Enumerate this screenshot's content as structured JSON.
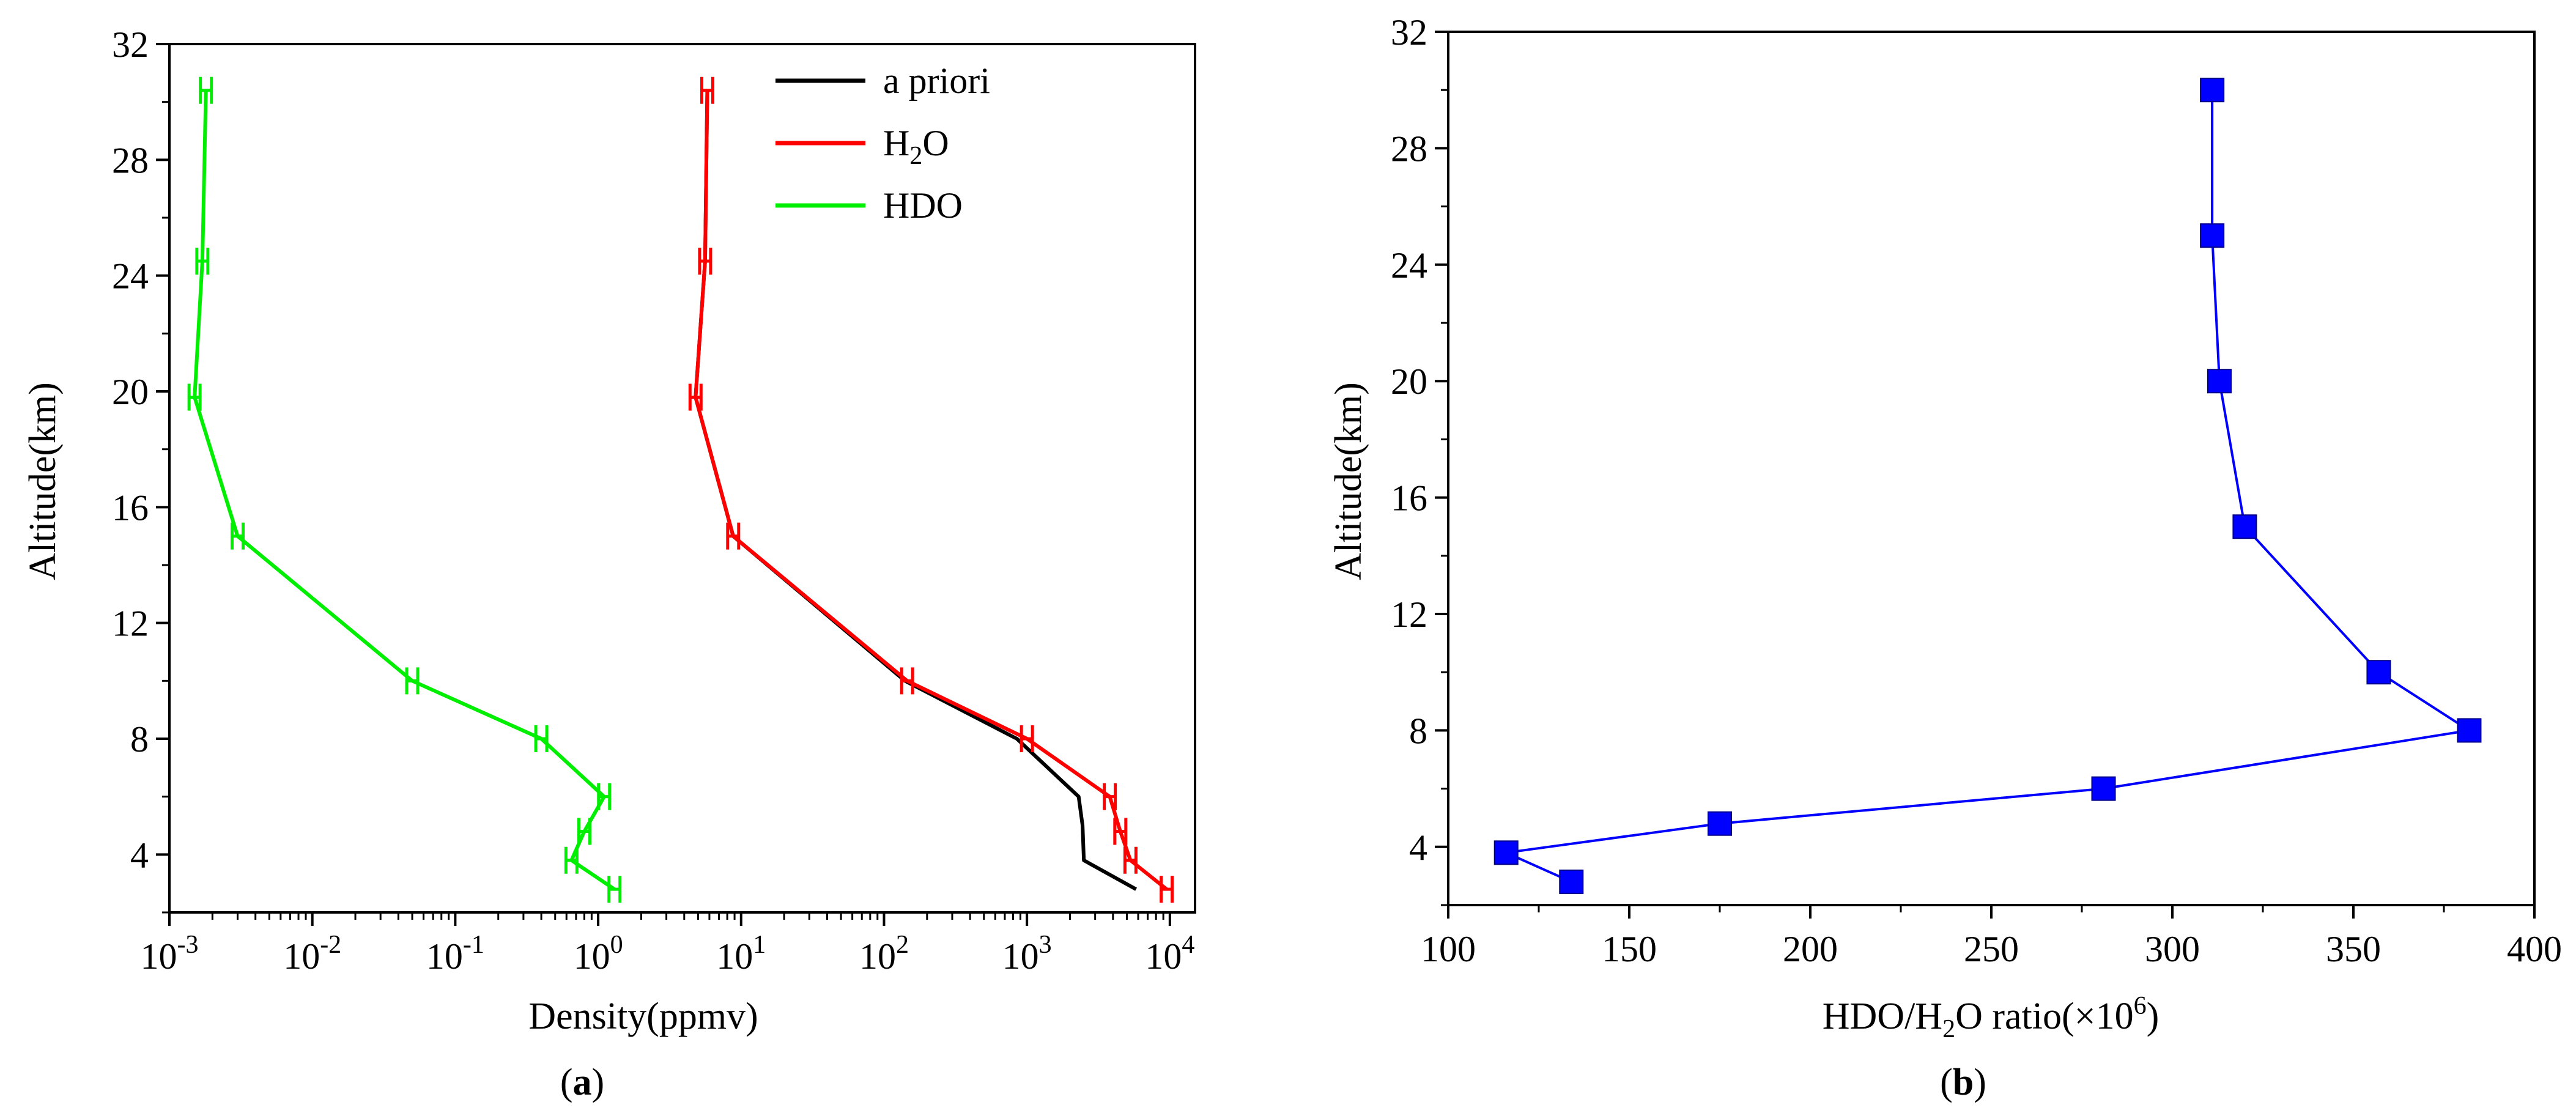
{
  "chart_data": [
    {
      "panel": "a",
      "caption": "a",
      "type": "line",
      "xscale": "log",
      "xlabel": "Density(ppmv)",
      "ylabel": "Altitude(km)",
      "xlim": [
        0.001,
        15000
      ],
      "ylim": [
        2,
        32
      ],
      "x_ticks": [
        {
          "value": 0.001,
          "base": "10",
          "exp": "-3"
        },
        {
          "value": 0.01,
          "base": "10",
          "exp": "-2"
        },
        {
          "value": 0.1,
          "base": "10",
          "exp": "-1"
        },
        {
          "value": 1,
          "base": "10",
          "exp": "0"
        },
        {
          "value": 10,
          "base": "10",
          "exp": "1"
        },
        {
          "value": 100,
          "base": "10",
          "exp": "2"
        },
        {
          "value": 1000,
          "base": "10",
          "exp": "3"
        },
        {
          "value": 10000,
          "base": "10",
          "exp": "4"
        }
      ],
      "y_ticks": [
        "4",
        "8",
        "12",
        "16",
        "20",
        "24",
        "28",
        "32"
      ],
      "legend": {
        "position": "top-right",
        "entries": [
          {
            "name": "a priori",
            "color": "#000000"
          },
          {
            "name": "H2O",
            "label_main": "H",
            "label_sub": "2",
            "label_tail": "O",
            "color": "#ff0000"
          },
          {
            "name": "HDO",
            "color": "#00ee00"
          }
        ]
      },
      "series": [
        {
          "name": "a priori",
          "color": "#000000",
          "errorbars": false,
          "points": [
            {
              "x": 5.8,
              "y": 30.4
            },
            {
              "x": 5.6,
              "y": 24.5
            },
            {
              "x": 4.8,
              "y": 19.8
            },
            {
              "x": 8.8,
              "y": 15
            },
            {
              "x": 140,
              "y": 10
            },
            {
              "x": 850,
              "y": 8
            },
            {
              "x": 2300,
              "y": 6
            },
            {
              "x": 2450,
              "y": 5
            },
            {
              "x": 2500,
              "y": 3.8
            },
            {
              "x": 5800,
              "y": 2.8
            }
          ]
        },
        {
          "name": "H2O",
          "color": "#ff0000",
          "errorbars": true,
          "points": [
            {
              "x": 5.8,
              "y": 30.4
            },
            {
              "x": 5.6,
              "y": 24.5
            },
            {
              "x": 4.8,
              "y": 19.8
            },
            {
              "x": 8.8,
              "y": 15
            },
            {
              "x": 145,
              "y": 10
            },
            {
              "x": 1000,
              "y": 8
            },
            {
              "x": 3800,
              "y": 6
            },
            {
              "x": 4500,
              "y": 4.8
            },
            {
              "x": 5300,
              "y": 3.8
            },
            {
              "x": 9500,
              "y": 2.8
            }
          ]
        },
        {
          "name": "HDO",
          "color": "#00ee00",
          "errorbars": true,
          "points": [
            {
              "x": 0.0018,
              "y": 30.4
            },
            {
              "x": 0.0017,
              "y": 24.5
            },
            {
              "x": 0.0015,
              "y": 19.8
            },
            {
              "x": 0.003,
              "y": 15
            },
            {
              "x": 0.05,
              "y": 10
            },
            {
              "x": 0.4,
              "y": 8
            },
            {
              "x": 1.1,
              "y": 6
            },
            {
              "x": 0.8,
              "y": 4.8
            },
            {
              "x": 0.65,
              "y": 3.8
            },
            {
              "x": 1.3,
              "y": 2.8
            }
          ]
        }
      ]
    },
    {
      "panel": "b",
      "caption": "b",
      "type": "line",
      "xscale": "linear",
      "xlabel_main": "HDO/H",
      "xlabel_sub": "2",
      "xlabel_mid": "O ratio(×10",
      "xlabel_sup": "6",
      "xlabel_tail": ")",
      "ylabel": "Altitude(km)",
      "xlim": [
        100,
        400
      ],
      "ylim": [
        2,
        32
      ],
      "x_ticks": [
        "100",
        "150",
        "200",
        "250",
        "300",
        "350",
        "400"
      ],
      "y_ticks": [
        "4",
        "8",
        "12",
        "16",
        "20",
        "24",
        "28",
        "32"
      ],
      "series": [
        {
          "name": "HDO/H2O ratio",
          "color": "#0000ff",
          "marker": "square",
          "points": [
            {
              "x": 311,
              "y": 30
            },
            {
              "x": 311,
              "y": 25
            },
            {
              "x": 313,
              "y": 20
            },
            {
              "x": 320,
              "y": 15
            },
            {
              "x": 357,
              "y": 10
            },
            {
              "x": 382,
              "y": 8
            },
            {
              "x": 281,
              "y": 6
            },
            {
              "x": 175,
              "y": 4.8
            },
            {
              "x": 116,
              "y": 3.8
            },
            {
              "x": 134,
              "y": 2.8
            }
          ]
        }
      ]
    }
  ]
}
